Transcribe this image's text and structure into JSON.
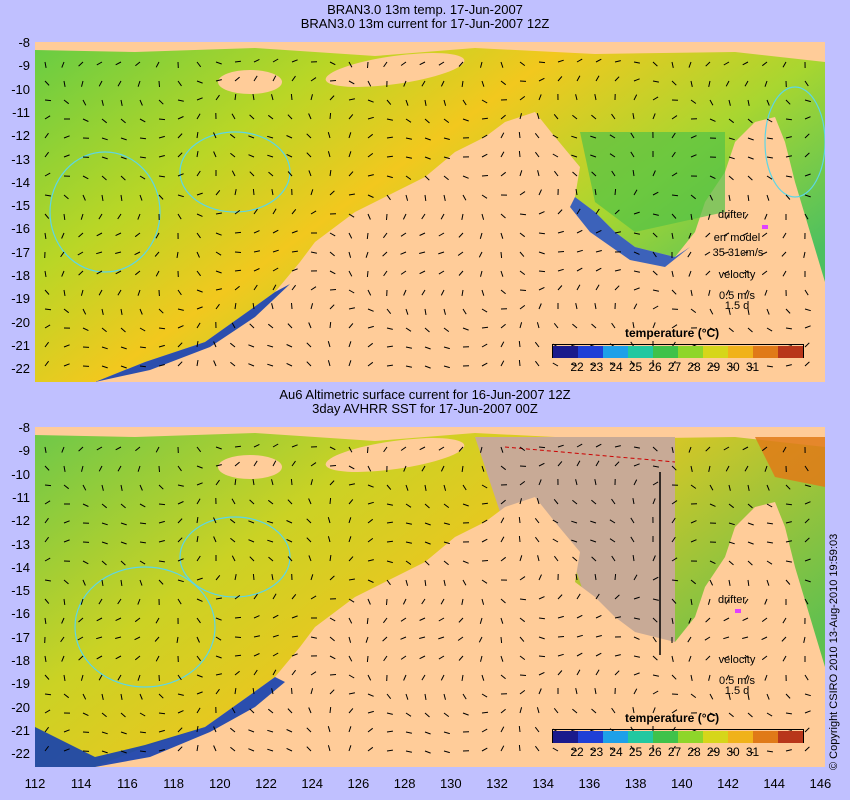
{
  "panel_top": {
    "title1": "BRAN3.0 13m temp. 17-Jun-2007",
    "title2": "BRAN3.0 13m current for 17-Jun-2007 12Z",
    "legend": {
      "drifter": "drifter",
      "err_model": "err model",
      "err_value": "35 31cm/s",
      "velocity": "velocity",
      "speed": "0.5 m/s",
      "duration": "1.5 d"
    }
  },
  "panel_bottom": {
    "title1": "Au6 Altimetric surface current for 16-Jun-2007 12Z",
    "title2": "3day AVHRR SST for 17-Jun-2007 00Z",
    "legend": {
      "drifter": "drifter",
      "velocity": "velocity",
      "speed": "0.5 m/s",
      "duration": "1.5 d"
    }
  },
  "colorbar": {
    "title": "temperature (°C)",
    "labels": [
      "22",
      "23",
      "24",
      "25",
      "26",
      "27",
      "28",
      "29",
      "30",
      "31"
    ]
  },
  "axes": {
    "lat_labels": [
      "-8",
      "-9",
      "-10",
      "-11",
      "-12",
      "-13",
      "-14",
      "-15",
      "-16",
      "-17",
      "-18",
      "-19",
      "-20",
      "-21",
      "-22"
    ],
    "lon_labels": [
      "112",
      "114",
      "116",
      "118",
      "120",
      "122",
      "124",
      "126",
      "128",
      "130",
      "132",
      "134",
      "136",
      "138",
      "140",
      "142",
      "144",
      "146"
    ]
  },
  "copyright": "© Copyright CSIRO 2010   13-Aug-2010 19:59:03",
  "colors": {
    "background": "#c0c0ff",
    "land": "#ffcc99",
    "cloud": "#c8aa96"
  }
}
